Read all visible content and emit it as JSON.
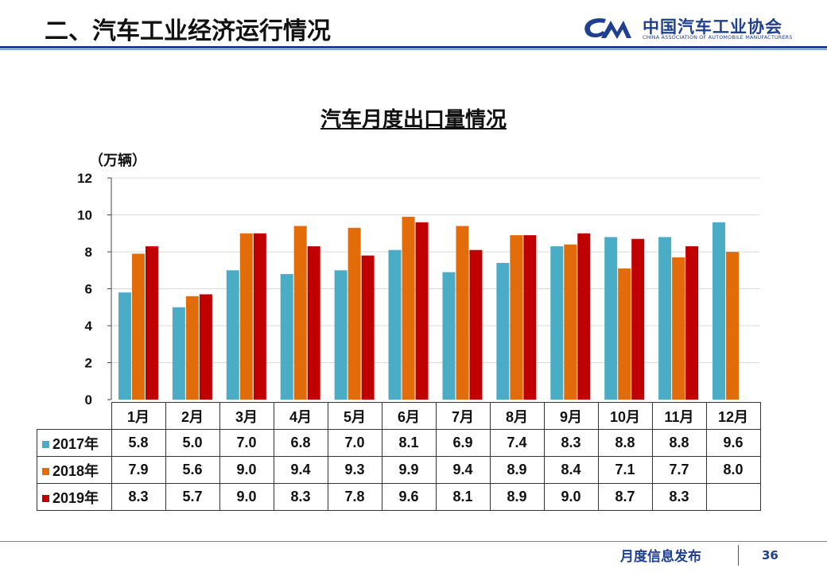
{
  "header": {
    "title": "二、汽车工业经济运行情况",
    "logo_text_cn": "中国汽车工业协会",
    "logo_text_en": "CHINA ASSOCIATION OF AUTOMOBILE MANUFACTURERS"
  },
  "footer": {
    "label": "月度信息发布",
    "page_number": "36"
  },
  "colors": {
    "2017年": "#4bacc6",
    "2018年": "#e36c0a",
    "2019年": "#c00000",
    "brand": "#1f3f8f"
  },
  "chart_data": {
    "type": "bar",
    "title": "汽车月度出口量情况",
    "ylabel": "（万辆）",
    "xlabel": "",
    "ylim": [
      0,
      12
    ],
    "yticks": [
      "0",
      "2",
      "4",
      "6",
      "8",
      "10",
      "12"
    ],
    "grid": true,
    "legend": "data-table",
    "categories": [
      "1月",
      "2月",
      "3月",
      "4月",
      "5月",
      "6月",
      "7月",
      "8月",
      "9月",
      "10月",
      "11月",
      "12月"
    ],
    "series": [
      {
        "name": "2017年",
        "values": [
          5.8,
          5.0,
          7.0,
          6.8,
          7.0,
          8.1,
          6.9,
          7.4,
          8.3,
          8.8,
          8.8,
          9.6
        ]
      },
      {
        "name": "2018年",
        "values": [
          7.9,
          5.6,
          9.0,
          9.4,
          9.3,
          9.9,
          9.4,
          8.9,
          8.4,
          7.1,
          7.7,
          8.0
        ]
      },
      {
        "name": "2019年",
        "values": [
          8.3,
          5.7,
          9.0,
          8.3,
          7.8,
          9.6,
          8.1,
          8.9,
          9.0,
          8.7,
          8.3,
          null
        ]
      }
    ],
    "table_values": [
      [
        "5.8",
        "5.0",
        "7.0",
        "6.8",
        "7.0",
        "8.1",
        "6.9",
        "7.4",
        "8.3",
        "8.8",
        "8.8",
        "9.6"
      ],
      [
        "7.9",
        "5.6",
        "9.0",
        "9.4",
        "9.3",
        "9.9",
        "9.4",
        "8.9",
        "8.4",
        "7.1",
        "7.7",
        "8.0"
      ],
      [
        "8.3",
        "5.7",
        "9.0",
        "8.3",
        "7.8",
        "9.6",
        "8.1",
        "8.9",
        "9.0",
        "8.7",
        "8.3",
        ""
      ]
    ]
  }
}
